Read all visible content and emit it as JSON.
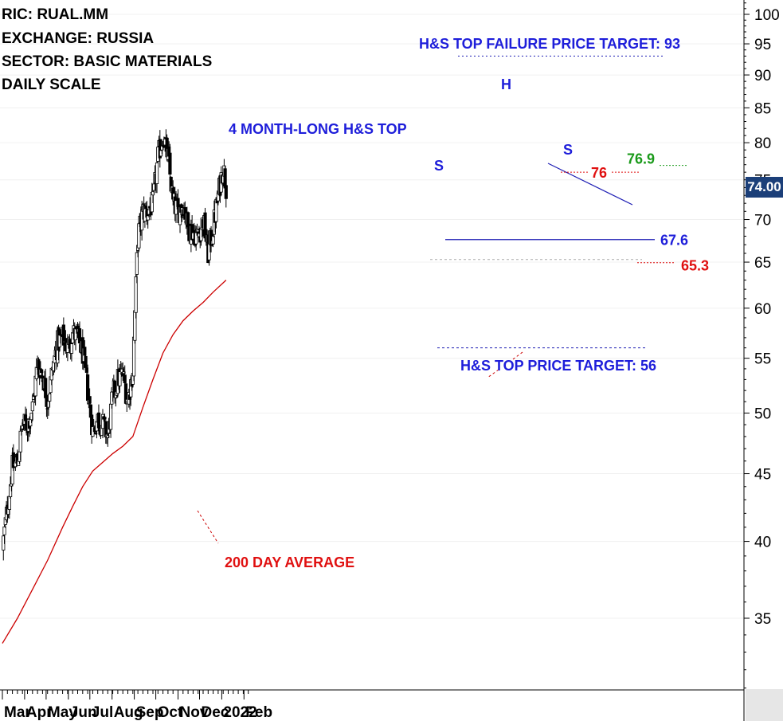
{
  "header": {
    "ric": "RIC: RUAL.MM",
    "exchange": "EXCHANGE: RUSSIA",
    "sector": "SECTOR: BASIC MATERIALS",
    "scale": "DAILY SCALE"
  },
  "annotations": {
    "failure_target": "H&S TOP FAILURE PRICE TARGET: 93",
    "pattern": "4 MONTH-LONG H&S TOP",
    "head": "H",
    "left_shoulder": "S",
    "right_shoulder": "S",
    "top_target": "H&S TOP PRICE TARGET: 56",
    "ma_label": "200 DAY AVERAGE",
    "last_price": "74.00"
  },
  "colors": {
    "text_blue": "#1e1eda",
    "text_red": "#e01010",
    "text_green": "#1a9a1a",
    "ma_line": "#cc0000",
    "neckline": "#1e1eb4",
    "price_badge": "#1b3f79",
    "candle": "#000000"
  },
  "chart_data": {
    "type": "candlestick",
    "scale": "log",
    "ylim": [
      30,
      103
    ],
    "yticks": [
      35,
      40,
      45,
      50,
      55,
      60,
      65,
      70,
      75,
      80,
      85,
      90,
      95,
      100
    ],
    "months": [
      "Mar",
      "Apr",
      "May",
      "Jun",
      "Jul",
      "Aug",
      "Sep",
      "Oct",
      "Nov",
      "Dec",
      "2022",
      "Feb"
    ],
    "last_price": 74.0,
    "levels": [
      {
        "label": "76",
        "value": 76,
        "color": "red"
      },
      {
        "label": "76.9",
        "value": 76.9,
        "color": "green"
      },
      {
        "label": "67.6",
        "value": 67.6,
        "color": "blue"
      },
      {
        "label": "65.3",
        "value": 65.3,
        "color": "red"
      }
    ],
    "targets": [
      {
        "label": "H&S TOP FAILURE PRICE TARGET: 93",
        "value": 93
      },
      {
        "label": "H&S TOP PRICE TARGET: 56",
        "value": 56
      }
    ],
    "close_path": [
      [
        "2021-03-01",
        39.5
      ],
      [
        "2021-03-08",
        42.5
      ],
      [
        "2021-03-15",
        45.5
      ],
      [
        "2021-03-22",
        46.0
      ],
      [
        "2021-03-29",
        49.0
      ],
      [
        "2021-04-05",
        49.0
      ],
      [
        "2021-04-12",
        50.5
      ],
      [
        "2021-04-19",
        54.5
      ],
      [
        "2021-04-26",
        53.5
      ],
      [
        "2021-05-03",
        51.0
      ],
      [
        "2021-05-10",
        54.0
      ],
      [
        "2021-05-17",
        56.5
      ],
      [
        "2021-05-24",
        57.0
      ],
      [
        "2021-05-31",
        56.0
      ],
      [
        "2021-06-07",
        57.5
      ],
      [
        "2021-06-14",
        57.0
      ],
      [
        "2021-06-21",
        55.5
      ],
      [
        "2021-06-28",
        52.0
      ],
      [
        "2021-07-05",
        48.5
      ],
      [
        "2021-07-12",
        49.5
      ],
      [
        "2021-07-19",
        49.0
      ],
      [
        "2021-07-26",
        48.0
      ],
      [
        "2021-08-02",
        51.5
      ],
      [
        "2021-08-09",
        53.0
      ],
      [
        "2021-08-16",
        53.5
      ],
      [
        "2021-08-23",
        51.0
      ],
      [
        "2021-08-30",
        54.0
      ],
      [
        "2021-09-06",
        68.0
      ],
      [
        "2021-09-13",
        71.0
      ],
      [
        "2021-09-20",
        71.0
      ],
      [
        "2021-09-27",
        72.0
      ],
      [
        "2021-10-04",
        78.0
      ],
      [
        "2021-10-11",
        81.0
      ],
      [
        "2021-10-18",
        78.0
      ],
      [
        "2021-10-25",
        72.0
      ],
      [
        "2021-11-01",
        71.0
      ],
      [
        "2021-11-08",
        72.0
      ],
      [
        "2021-11-15",
        69.0
      ],
      [
        "2021-11-22",
        68.5
      ],
      [
        "2021-11-29",
        68.0
      ],
      [
        "2021-12-06",
        70.0
      ],
      [
        "2021-12-13",
        66.0
      ],
      [
        "2021-12-20",
        69.0
      ],
      [
        "2021-12-27",
        73.0
      ],
      [
        "2022-01-03",
        77.0
      ],
      [
        "2022-01-07",
        74.0
      ]
    ],
    "ma200": [
      [
        "2021-03-01",
        33.5
      ],
      [
        "2021-03-22",
        35.0
      ],
      [
        "2021-04-12",
        36.8
      ],
      [
        "2021-05-03",
        38.7
      ],
      [
        "2021-05-24",
        41.0
      ],
      [
        "2021-06-07",
        42.5
      ],
      [
        "2021-06-21",
        44.0
      ],
      [
        "2021-07-05",
        45.2
      ],
      [
        "2021-07-19",
        45.9
      ],
      [
        "2021-08-02",
        46.6
      ],
      [
        "2021-08-16",
        47.2
      ],
      [
        "2021-08-30",
        48.0
      ],
      [
        "2021-09-13",
        50.5
      ],
      [
        "2021-09-27",
        53.0
      ],
      [
        "2021-10-11",
        55.5
      ],
      [
        "2021-10-25",
        57.3
      ],
      [
        "2021-11-08",
        58.7
      ],
      [
        "2021-11-22",
        59.7
      ],
      [
        "2021-12-06",
        60.6
      ],
      [
        "2021-12-20",
        61.7
      ],
      [
        "2022-01-07",
        63.0
      ]
    ]
  }
}
